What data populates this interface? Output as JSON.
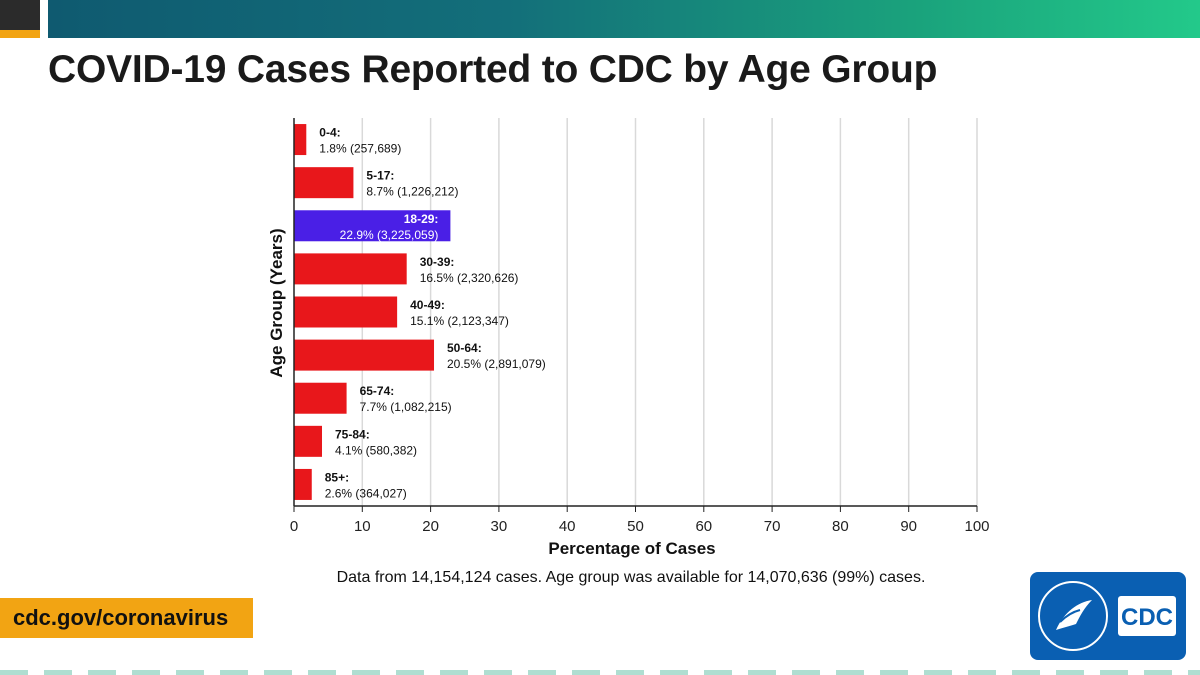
{
  "header": {
    "title": "COVID-19 Cases Reported to CDC by Age Group"
  },
  "chart_data": {
    "type": "bar",
    "orientation": "horizontal",
    "title": "",
    "xlabel": "Percentage of Cases",
    "ylabel": "Age Group (Years)",
    "xlim": [
      0,
      100
    ],
    "xticks": [
      "0",
      "10",
      "20",
      "30",
      "40",
      "50",
      "60",
      "70",
      "80",
      "90",
      "100"
    ],
    "grid": "vertical",
    "categories": [
      "0-4",
      "5-17",
      "18-29",
      "30-39",
      "40-49",
      "50-64",
      "65-74",
      "75-84",
      "85+"
    ],
    "values": [
      1.8,
      8.7,
      22.9,
      16.5,
      15.1,
      20.5,
      7.7,
      4.1,
      2.6
    ],
    "counts": [
      "257,689",
      "1,226,212",
      "3,225,059",
      "2,320,626",
      "2,123,347",
      "2,891,079",
      "1,082,215",
      "580,382",
      "364,027"
    ],
    "bar_labels": [
      {
        "name": "0-4:",
        "detail": "1.8% (257,689)"
      },
      {
        "name": "5-17:",
        "detail": "8.7% (1,226,212)"
      },
      {
        "name": "18-29:",
        "detail": "22.9% (3,225,059)"
      },
      {
        "name": "30-39:",
        "detail": "16.5% (2,320,626)"
      },
      {
        "name": "40-49:",
        "detail": "15.1% (2,123,347)"
      },
      {
        "name": "50-64:",
        "detail": "20.5% (2,891,079)"
      },
      {
        "name": "65-74:",
        "detail": "7.7% (1,082,215)"
      },
      {
        "name": "75-84:",
        "detail": "4.1% (580,382)"
      },
      {
        "name": "85+:",
        "detail": "2.6% (364,027)"
      }
    ],
    "highlight_category": "18-29",
    "colors": {
      "bar": "#e8171b",
      "highlight": "#4a1fe6",
      "grid": "#d9d9d9",
      "axis": "#222222"
    }
  },
  "footnote": "Data from 14,154,124 cases. Age group was available for 14,070,636 (99%) cases.",
  "footer": {
    "site_url": "cdc.gov/coronavirus",
    "logo_text": "CDC"
  }
}
